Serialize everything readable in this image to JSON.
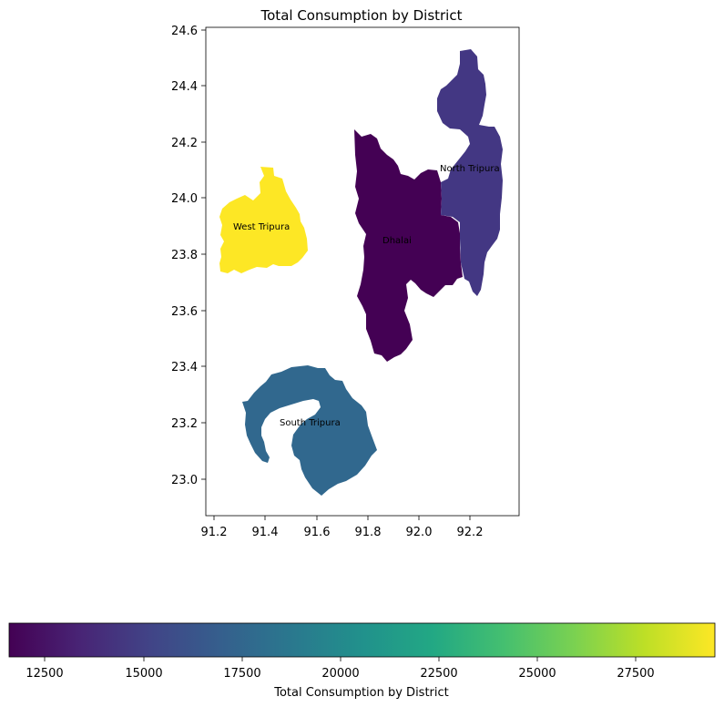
{
  "chart_data": {
    "type": "choropleth",
    "title": "Total Consumption by District",
    "x_ticks": [
      "91.2",
      "91.4",
      "91.6",
      "91.8",
      "92.0",
      "92.2"
    ],
    "y_ticks": [
      "23.0",
      "23.2",
      "23.4",
      "23.6",
      "23.8",
      "24.0",
      "24.2",
      "24.4",
      "24.6"
    ],
    "xlim": [
      91.17,
      92.39
    ],
    "ylim": [
      22.86,
      24.61
    ],
    "districts": [
      {
        "name": "Dhalai",
        "label_lon": 91.86,
        "label_lat": 23.84,
        "value": 11600,
        "color": "#440154"
      },
      {
        "name": "North Tripura",
        "label_lon": 92.08,
        "label_lat": 24.1,
        "value": 14000,
        "color": "#433783"
      },
      {
        "name": "West Tripura",
        "label_lon": 91.28,
        "label_lat": 23.89,
        "value": 29500,
        "color": "#fde725"
      },
      {
        "name": "South Tripura",
        "label_lon": 91.46,
        "label_lat": 23.19,
        "value": 18000,
        "color": "#31688e"
      }
    ],
    "colorbar": {
      "label": "Total Consumption by District",
      "min": 11600,
      "max": 29600,
      "ticks": [
        "12500",
        "15000",
        "17500",
        "20000",
        "22500",
        "25000",
        "27500"
      ],
      "colormap": "viridis"
    }
  }
}
